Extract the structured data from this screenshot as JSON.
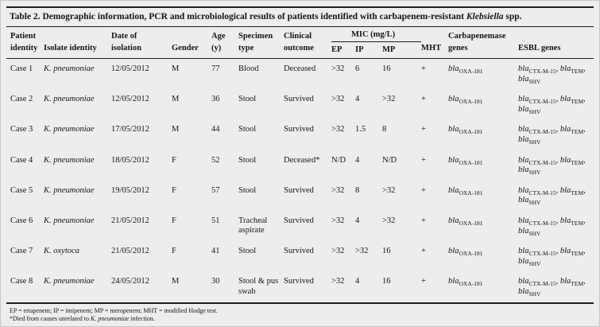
{
  "colors": {
    "page_bg": "#edeeec",
    "rule": "#1d1d1b",
    "text": "#151513"
  },
  "caption": {
    "label": "Table 2.",
    "before_italic": " Demographic information, PCR and microbiological results of patients identified with carbapenem-resistant ",
    "italic": "Klebsiella",
    "after_italic": " spp."
  },
  "header": {
    "patient": [
      "Patient",
      "identity"
    ],
    "isolate": "Isolate identity",
    "date": [
      "Date of",
      "isolation"
    ],
    "gender": "Gender",
    "age": [
      "Age",
      "(y)"
    ],
    "specimen": [
      "Specimen",
      "type"
    ],
    "clinical": [
      "Clinical",
      "outcome"
    ],
    "mic_group": "MIC (mg/L)",
    "mic_sub": [
      "EP",
      "IP",
      "MP"
    ],
    "mht": "MHT",
    "carbapenemase": [
      "Carbapenemase",
      "genes"
    ],
    "esbl": "ESBL genes"
  },
  "rows": [
    {
      "patient": "Case 1",
      "isolate": "K. pneumoniae",
      "date": "12/05/2012",
      "gender": "M",
      "age": "77",
      "specimen": "Blood",
      "clinical": "Deceased",
      "ep": ">32",
      "ip": "6",
      "mp": "16",
      "mht": "+",
      "carbapenemase": {
        "base": "bla",
        "sub": "OXA-181"
      },
      "esbl_lines": [
        [
          {
            "base": "bla",
            "sub": "CTX-M-15"
          },
          {
            "base": "bla",
            "sub": "TEM"
          }
        ],
        [
          {
            "base": "bla",
            "sub": "SHV"
          }
        ]
      ]
    },
    {
      "patient": "Case 2",
      "isolate": "K. pneumoniae",
      "date": "12/05/2012",
      "gender": "M",
      "age": "36",
      "specimen": "Stool",
      "clinical": "Survived",
      "ep": ">32",
      "ip": "4",
      "mp": ">32",
      "mht": "+",
      "carbapenemase": {
        "base": "bla",
        "sub": "OXA-181"
      },
      "esbl_lines": [
        [
          {
            "base": "bla",
            "sub": "CTX-M-15"
          },
          {
            "base": "bla",
            "sub": "TEM"
          }
        ],
        [
          {
            "base": "bla",
            "sub": "SHV"
          }
        ]
      ]
    },
    {
      "patient": "Case 3",
      "isolate": "K. pneumoniae",
      "date": "17/05/2012",
      "gender": "M",
      "age": "44",
      "specimen": "Stool",
      "clinical": "Survived",
      "ep": ">32",
      "ip": "1.5",
      "mp": "8",
      "mht": "+",
      "carbapenemase": {
        "base": "bla",
        "sub": "OXA-181"
      },
      "esbl_lines": [
        [
          {
            "base": "bla",
            "sub": "CTX-M-15"
          },
          {
            "base": "bla",
            "sub": "TEM"
          }
        ],
        [
          {
            "base": "bla",
            "sub": "SHV"
          }
        ]
      ]
    },
    {
      "patient": "Case 4",
      "isolate": "K. pneumoniae",
      "date": "18/05/2012",
      "gender": "F",
      "age": "52",
      "specimen": "Stool",
      "clinical": "Deceased*",
      "ep": "N/D",
      "ip": "4",
      "mp": "N/D",
      "mht": "+",
      "carbapenemase": {
        "base": "bla",
        "sub": "OXA-181"
      },
      "esbl_lines": [
        [
          {
            "base": "bla",
            "sub": "CTX-M-15"
          },
          {
            "base": "bla",
            "sub": "TEM"
          }
        ],
        [
          {
            "base": "bla",
            "sub": "SHV"
          }
        ]
      ]
    },
    {
      "patient": "Case 5",
      "isolate": "K. pneumoniae",
      "date": "19/05/2012",
      "gender": "F",
      "age": "57",
      "specimen": "Stool",
      "clinical": "Survived",
      "ep": ">32",
      "ip": "8",
      "mp": ">32",
      "mht": "+",
      "carbapenemase": {
        "base": "bla",
        "sub": "OXA-181"
      },
      "esbl_lines": [
        [
          {
            "base": "bla",
            "sub": "CTX-M-15"
          },
          {
            "base": "bla",
            "sub": "TEM"
          }
        ],
        [
          {
            "base": "bla",
            "sub": "SHV"
          }
        ]
      ]
    },
    {
      "patient": "Case 6",
      "isolate": "K. pneumoniae",
      "date": "21/05/2012",
      "gender": "F",
      "age": "51",
      "specimen": "Tracheal aspirate",
      "clinical": "Survived",
      "ep": ">32",
      "ip": "4",
      "mp": ">32",
      "mht": "+",
      "carbapenemase": {
        "base": "bla",
        "sub": "OXA-181"
      },
      "esbl_lines": [
        [
          {
            "base": "bla",
            "sub": "CTX-M-15"
          },
          {
            "base": "bla",
            "sub": "TEM"
          }
        ],
        [
          {
            "base": "bla",
            "sub": "SHV"
          }
        ]
      ]
    },
    {
      "patient": "Case 7",
      "isolate": "K. oxytoca",
      "date": "21/05/2012",
      "gender": "F",
      "age": "41",
      "specimen": "Stool",
      "clinical": "Survived",
      "ep": ">32",
      "ip": ">32",
      "mp": "16",
      "mht": "+",
      "carbapenemase": {
        "base": "bla",
        "sub": "OXA-181"
      },
      "esbl_lines": [
        [
          {
            "base": "bla",
            "sub": "CTX-M-15"
          },
          {
            "base": "bla",
            "sub": "TEM"
          }
        ],
        [
          {
            "base": "bla",
            "sub": "SHV"
          }
        ]
      ]
    },
    {
      "patient": "Case 8",
      "isolate": "K. pneumoniae",
      "date": "24/05/2012",
      "gender": "M",
      "age": "30",
      "specimen": "Stool & pus swab",
      "clinical": "Survived",
      "ep": ">32",
      "ip": "4",
      "mp": "16",
      "mht": "+",
      "carbapenemase": {
        "base": "bla",
        "sub": "OXA-181"
      },
      "esbl_lines": [
        [
          {
            "base": "bla",
            "sub": "CTX-M-15"
          },
          {
            "base": "bla",
            "sub": "TEM"
          }
        ],
        [
          {
            "base": "bla",
            "sub": "SHV"
          }
        ]
      ]
    }
  ],
  "footnotes": [
    [
      {
        "text": "EP = ertapenem; IP = imipenem; MP = meropenem; MHT = modified Hodge test.",
        "italic": false
      }
    ],
    [
      {
        "text": "*Died from causes unrelated to ",
        "italic": false
      },
      {
        "text": "K. pneumoniae",
        "italic": true
      },
      {
        "text": " infection.",
        "italic": false
      }
    ]
  ]
}
